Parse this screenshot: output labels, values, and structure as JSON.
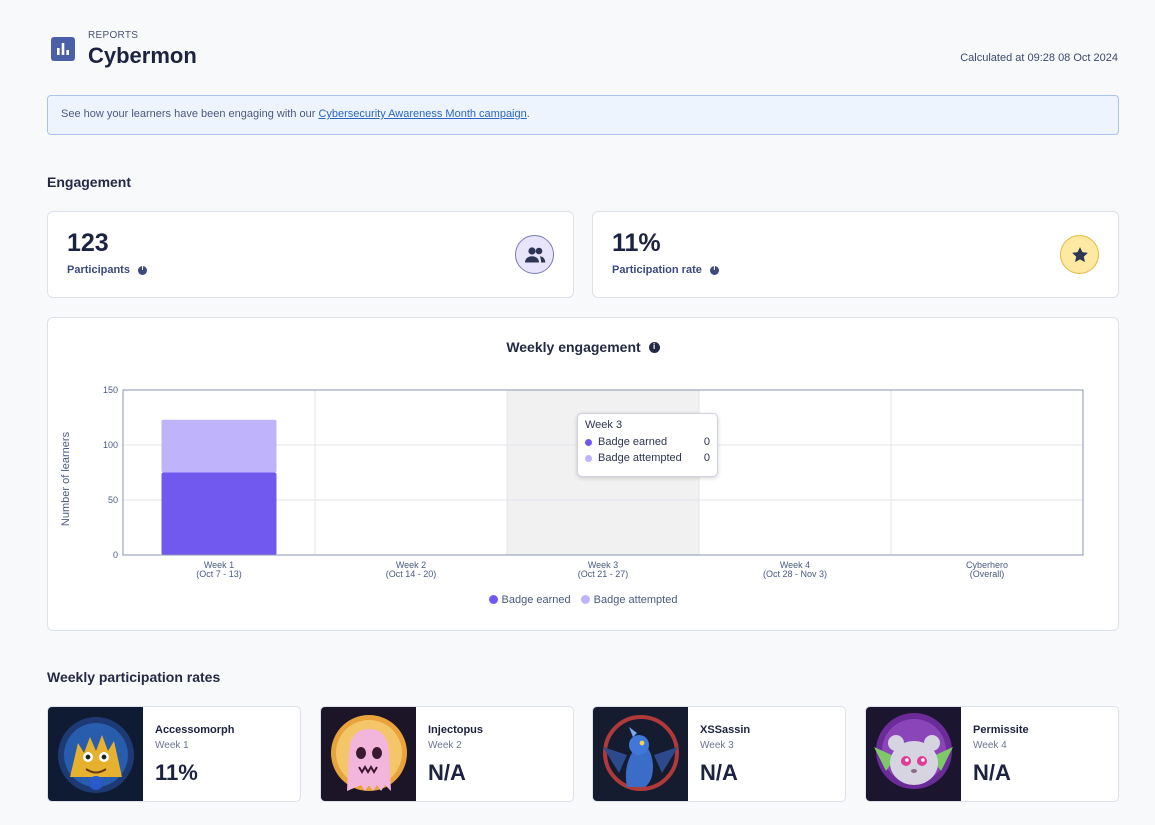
{
  "header": {
    "eyebrow": "REPORTS",
    "title": "Cybermon",
    "calculated": "Calculated at 09:28 08 Oct 2024"
  },
  "banner": {
    "text_before": "See how your learners have been engaging with our ",
    "link_text": "Cybersecurity Awareness Month campaign",
    "text_after": "."
  },
  "engagement": {
    "section_title": "Engagement",
    "participants": {
      "value": "123",
      "label": "Participants",
      "icon": "people-icon"
    },
    "participation_rate": {
      "value": "11%",
      "label": "Participation rate",
      "icon": "star-icon"
    }
  },
  "chart": {
    "title": "Weekly engagement"
  },
  "chart_data": {
    "type": "bar",
    "title": "Weekly engagement",
    "ylabel": "Number of learners",
    "xlabel": "",
    "ylim": [
      0,
      150
    ],
    "yticks": [
      "0",
      "50",
      "100",
      "150"
    ],
    "categories": [
      {
        "line1": "Week 1",
        "line2": "(Oct 7 - 13)"
      },
      {
        "line1": "Week 2",
        "line2": "(Oct 14 - 20)"
      },
      {
        "line1": "Week 3",
        "line2": "(Oct 21 - 27)"
      },
      {
        "line1": "Week 4",
        "line2": "(Oct 28 - Nov 3)"
      },
      {
        "line1": "Cyberhero",
        "line2": "(Overall)"
      }
    ],
    "stacked": true,
    "series": [
      {
        "name": "Badge earned",
        "color": "#7158ef",
        "values": [
          75,
          0,
          0,
          0,
          0
        ]
      },
      {
        "name": "Badge attempted",
        "color": "#bfb4fb",
        "values": [
          48,
          0,
          0,
          0,
          0
        ]
      }
    ],
    "highlighted_category_index": 2,
    "legend_position": "bottom",
    "grid": true,
    "tooltip": {
      "title": "Week 3",
      "rows": [
        {
          "label": "Badge earned",
          "value": "0"
        },
        {
          "label": "Badge attempted",
          "value": "0"
        }
      ]
    }
  },
  "weekly_rates": {
    "section_title": "Weekly participation rates",
    "cards": [
      {
        "name": "Accessomorph",
        "week": "Week 1",
        "rate": "11%"
      },
      {
        "name": "Injectopus",
        "week": "Week 2",
        "rate": "N/A"
      },
      {
        "name": "XSSassin",
        "week": "Week 3",
        "rate": "N/A"
      },
      {
        "name": "Permissite",
        "week": "Week 4",
        "rate": "N/A"
      }
    ]
  }
}
